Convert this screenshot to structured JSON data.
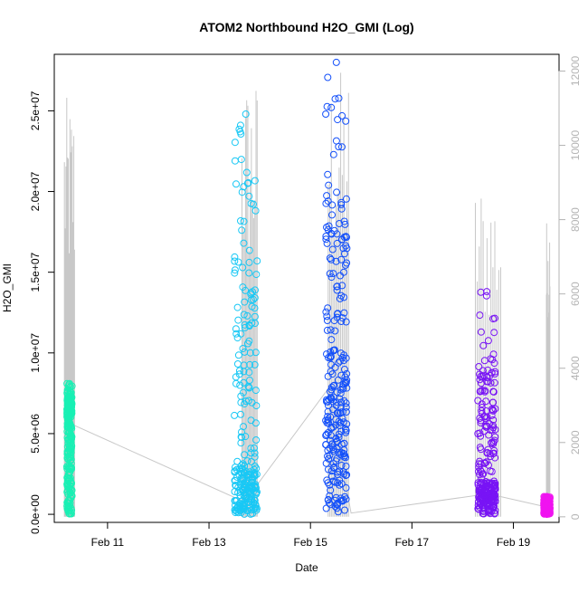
{
  "chart_data": {
    "type": "scatter",
    "title": "ATOM2 Northbound H2O_GMI (Log)",
    "xlabel": "Date",
    "ylabel": "H2O_GMI",
    "x_ticks": [
      "Feb 11",
      "Feb 13",
      "Feb 15",
      "Feb 17",
      "Feb 19"
    ],
    "x_tick_values": [
      11,
      13,
      15,
      17,
      19
    ],
    "xlim": [
      9.95,
      19.9
    ],
    "ylim_left": [
      -500000,
      28500000
    ],
    "y_left_ticks": [
      "0.0e+00",
      "5.0e+06",
      "1.0e+07",
      "1.5e+07",
      "2.0e+07",
      "2.5e+07"
    ],
    "y_left_tick_values": [
      0,
      5000000,
      10000000,
      15000000,
      20000000,
      25000000
    ],
    "ylim_right": [
      -150,
      12450
    ],
    "y_right_ticks": [
      "0",
      "2000",
      "4000",
      "6000",
      "8000",
      "10000",
      "12000"
    ],
    "y_right_tick_values": [
      0,
      2000,
      4000,
      6000,
      8000,
      10000,
      12000
    ],
    "grid": false,
    "legend": "none",
    "series": [
      {
        "color": "#19f0b4",
        "x_range": [
          10.2,
          10.3
        ],
        "y_max": 8100000,
        "y_dense": 6000000
      },
      {
        "color": "#19c8f5",
        "x_range": [
          13.5,
          13.95
        ],
        "y_max": 24800000,
        "y_dense": 3000000
      },
      {
        "color": "#1450fa",
        "x_range": [
          15.3,
          15.72
        ],
        "y_max": 28000000,
        "y_dense": 8000000
      },
      {
        "color": "#7814f5",
        "x_range": [
          18.3,
          18.65
        ],
        "y_max": 13800000,
        "y_dense": 2000000
      },
      {
        "color": "#f014f0",
        "x_range": [
          19.6,
          19.72
        ],
        "y_max": 1100000,
        "y_dense": 600000
      }
    ],
    "altitude_line": {
      "color": "#c8c8c8",
      "axis": "right",
      "spikes": [
        {
          "x": [
            10.15,
            10.35
          ],
          "max": 11300
        },
        {
          "x": [
            13.65,
            13.95
          ],
          "max": 11900
        },
        {
          "x": [
            15.35,
            15.75
          ],
          "max": 12100
        },
        {
          "x": [
            18.25,
            18.75
          ],
          "max": 9200
        },
        {
          "x": [
            19.65,
            19.72
          ],
          "max": 8100
        }
      ],
      "baseline_path": [
        [
          10.2,
          2550
        ],
        [
          13.7,
          400
        ],
        [
          15.35,
          3450
        ],
        [
          15.8,
          100
        ],
        [
          18.5,
          620
        ],
        [
          19.7,
          250
        ]
      ]
    }
  }
}
